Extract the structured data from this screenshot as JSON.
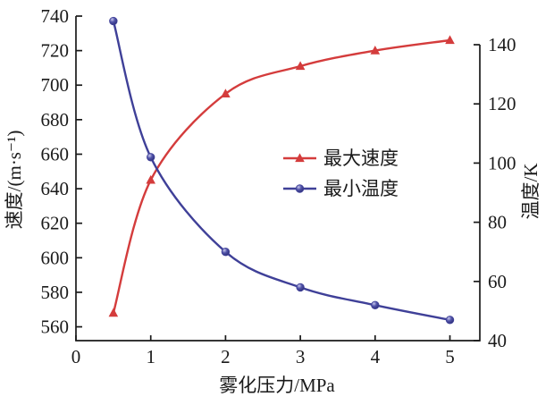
{
  "chart_data": {
    "type": "line",
    "title": "",
    "x": [
      0.5,
      1,
      2,
      3,
      4,
      5
    ],
    "xlabel": "雾化压力/MPa",
    "xticks": [
      0,
      1,
      2,
      3,
      4,
      5
    ],
    "xlim": [
      0,
      5.4
    ],
    "grid": false,
    "background": "#ffffff",
    "axis_color": "#1a1a1a",
    "axes": {
      "left": {
        "label": "速度/(m·s⁻¹)",
        "ticks": [
          560,
          580,
          600,
          620,
          640,
          660,
          680,
          700,
          720,
          740
        ],
        "lim": [
          552,
          740
        ]
      },
      "right": {
        "label": "温度/K",
        "ticks": [
          40,
          60,
          80,
          100,
          120,
          140
        ],
        "lim": [
          40,
          140
        ]
      }
    },
    "series": [
      {
        "key": "max-speed",
        "name": "最大速度",
        "axis": "left",
        "color": "#d43c3c",
        "marker": "triangle",
        "values": [
          568,
          645,
          695,
          711,
          720,
          726
        ]
      },
      {
        "key": "min-temperature",
        "name": "最小温度",
        "axis": "right",
        "color": "#3f4098",
        "marker": "circle",
        "values": [
          148,
          102,
          70,
          58,
          52,
          47
        ]
      }
    ],
    "legend": {
      "position": "center-right",
      "entries": [
        "最大速度",
        "最小温度"
      ]
    }
  }
}
